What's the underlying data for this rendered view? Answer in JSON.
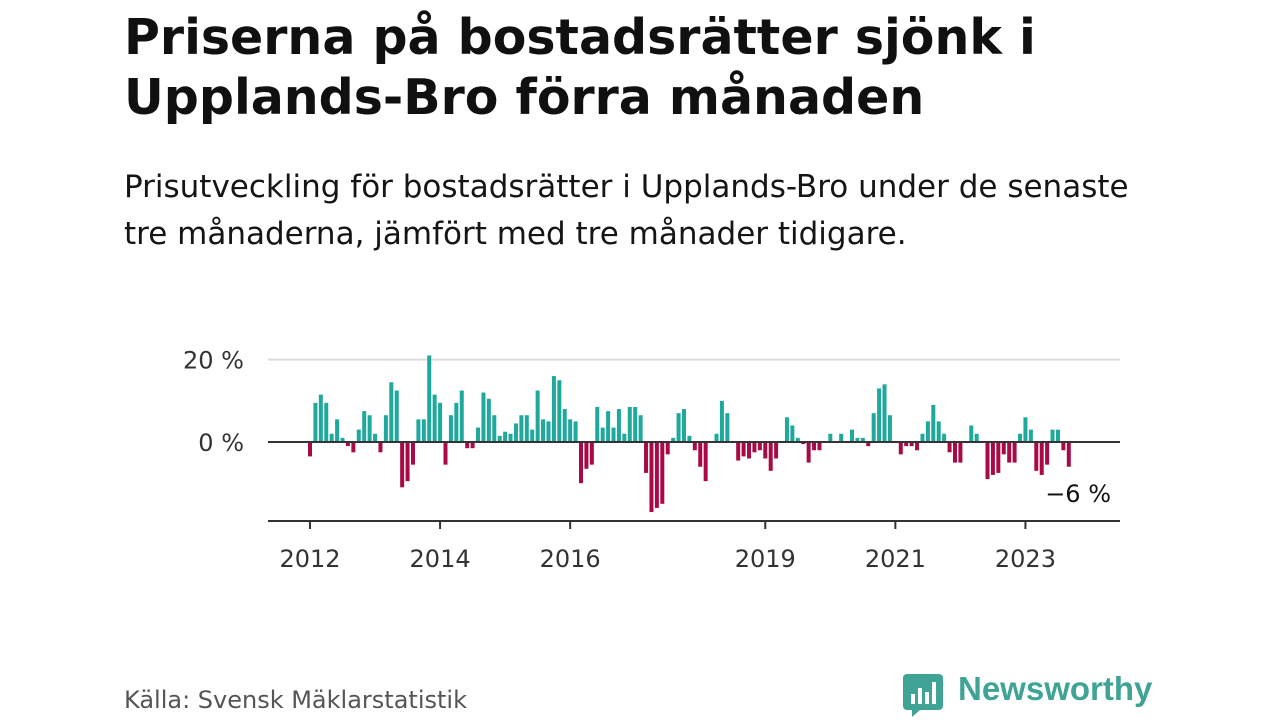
{
  "title": "Priserna på bostadsrätter sjönk i Upplands-Bro förra månaden",
  "subtitle": "Prisutveckling för bostadsrätter i Upplands-Bro under de senaste tre månaderna, jämfört med tre månader tidigare.",
  "source": "Källa: Svensk Mäklarstatistik",
  "brand": {
    "name": "Newsworthy",
    "color": "#3fa396"
  },
  "colors": {
    "positive": "#1fa89c",
    "negative": "#a80a45",
    "zero_line": "#333333",
    "grid": "#dddddd"
  },
  "chart_data": {
    "type": "bar",
    "title": "",
    "xlabel": "",
    "ylabel": "",
    "ylim": [
      -20,
      22
    ],
    "y_ticks": [
      {
        "value": 0,
        "label": "0 %"
      },
      {
        "value": 20,
        "label": "20 %"
      }
    ],
    "x_ticks": [
      {
        "index": 0,
        "label": "2012"
      },
      {
        "index": 24,
        "label": "2014"
      },
      {
        "index": 48,
        "label": "2016"
      },
      {
        "index": 84,
        "label": "2019"
      },
      {
        "index": 108,
        "label": "2021"
      },
      {
        "index": 132,
        "label": "2023"
      }
    ],
    "first_month": "2012-01",
    "annotation": {
      "text": "−6 %",
      "index": 141
    },
    "series": [
      {
        "name": "Prisutveckling",
        "values": [
          -3.5,
          9.5,
          11.5,
          9.5,
          2,
          5.5,
          1,
          -1,
          -2.5,
          3,
          7.5,
          6.5,
          2,
          -2.5,
          6.5,
          14.5,
          12.5,
          -11,
          -9.5,
          -5.5,
          5.5,
          5.5,
          21,
          11.5,
          9.5,
          -5.5,
          6.5,
          9.5,
          12.5,
          -1.5,
          -1.5,
          3.5,
          12,
          10.5,
          6.5,
          1.5,
          2.5,
          2,
          4.5,
          6.5,
          6.5,
          3,
          12.5,
          5.5,
          5,
          16,
          15,
          8,
          5.5,
          5,
          -10,
          -6.5,
          -5.5,
          8.5,
          3.5,
          7.5,
          3.5,
          8,
          2,
          8.5,
          8.5,
          6.5,
          -7.5,
          -17,
          -16,
          -15,
          -3,
          1,
          7,
          8,
          1.5,
          -2,
          -6,
          -9.5,
          0,
          2,
          10,
          7,
          0,
          -4.5,
          -3.5,
          -4,
          -2.5,
          -2,
          -4,
          -7,
          -4,
          0,
          6,
          4,
          1,
          -0.5,
          -5,
          -2,
          -2,
          0,
          2,
          0,
          2,
          0,
          3,
          1,
          1,
          -1,
          7,
          13,
          14,
          6.5,
          0,
          -3,
          -1,
          -1,
          -2,
          2,
          5,
          9,
          5,
          2,
          -2.5,
          -5,
          -5,
          0,
          4,
          2,
          0,
          -9,
          -8,
          -7.5,
          -3,
          -5,
          -5,
          2,
          6,
          3,
          -7,
          -8,
          -5.5,
          3,
          3,
          -2,
          -6
        ]
      }
    ]
  }
}
